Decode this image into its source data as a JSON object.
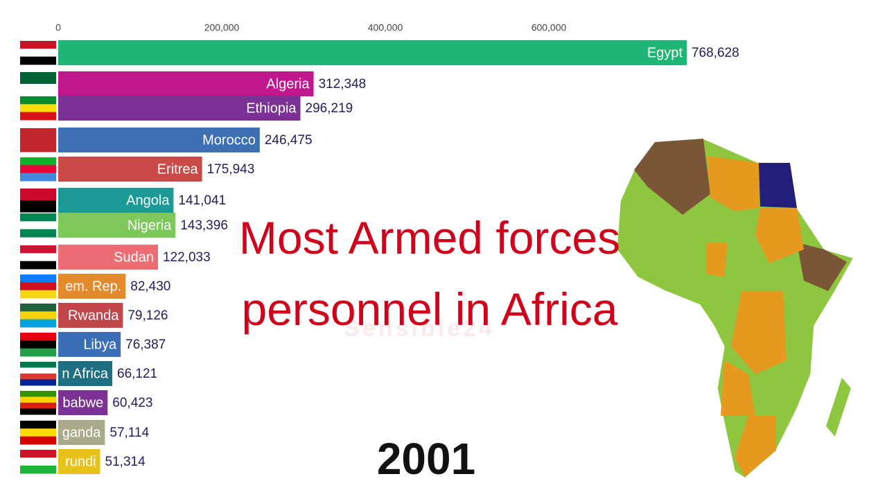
{
  "chart_data": {
    "type": "bar",
    "orientation": "horizontal",
    "title": "Most Armed forces personnel in Africa",
    "year": "2001",
    "watermark": "Sensible24",
    "categories": [
      "Egypt",
      "Algeria",
      "Ethiopia",
      "Morocco",
      "Eritrea",
      "Angola",
      "Nigeria",
      "Sudan",
      "em. Rep.",
      "Rwanda",
      "Libya",
      "n Africa",
      "babwe",
      "ganda",
      "rundi"
    ],
    "values": [
      768628,
      312348,
      296219,
      246475,
      175943,
      141041,
      143396,
      122033,
      82430,
      79126,
      76387,
      66121,
      60423,
      57114,
      51314
    ],
    "value_labels": [
      "768,628",
      "312,348",
      "296,219",
      "246,475",
      "175,943",
      "141,041",
      "143,396",
      "122,033",
      "82,430",
      "79,126",
      "76,387",
      "66,121",
      "60,423",
      "57,114",
      "51,314"
    ],
    "colors": [
      "#1fb574",
      "#c0168e",
      "#7b3294",
      "#3d6fb3",
      "#c94a46",
      "#1b9a95",
      "#7dc75b",
      "#ec6d73",
      "#e38a2a",
      "#c1464a",
      "#3b6fb5",
      "#1e6f84",
      "#7b3294",
      "#a9a98b",
      "#e6c21a"
    ],
    "xlim": [
      0,
      800000
    ],
    "xticks": [
      0,
      {
        "value": 200000,
        "label": "200,000"
      },
      {
        "value": 400000,
        "label": "400,000"
      },
      {
        "value": 600000,
        "label": "600,000"
      }
    ]
  }
}
